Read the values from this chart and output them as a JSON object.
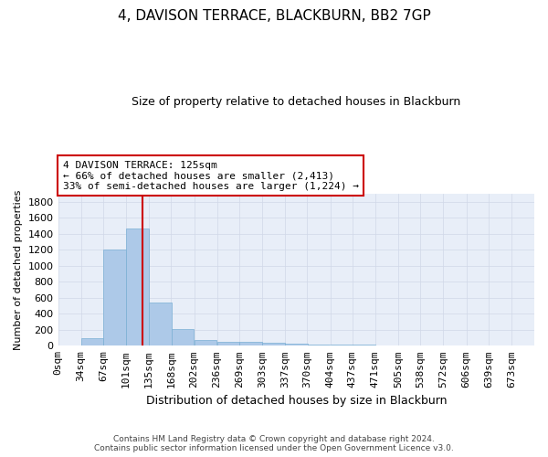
{
  "title1": "4, DAVISON TERRACE, BLACKBURN, BB2 7GP",
  "title2": "Size of property relative to detached houses in Blackburn",
  "xlabel": "Distribution of detached houses by size in Blackburn",
  "ylabel": "Number of detached properties",
  "bin_labels": [
    "0sqm",
    "34sqm",
    "67sqm",
    "101sqm",
    "135sqm",
    "168sqm",
    "202sqm",
    "236sqm",
    "269sqm",
    "303sqm",
    "337sqm",
    "370sqm",
    "404sqm",
    "437sqm",
    "471sqm",
    "505sqm",
    "538sqm",
    "572sqm",
    "606sqm",
    "639sqm",
    "673sqm"
  ],
  "bar_heights": [
    0,
    90,
    1200,
    1470,
    540,
    205,
    75,
    50,
    45,
    35,
    25,
    20,
    15,
    15,
    0,
    0,
    0,
    0,
    0,
    0,
    0
  ],
  "bar_color": "#adc9e8",
  "bar_edgecolor": "#7aafd4",
  "property_line_x": 125,
  "bin_edges": [
    0,
    34,
    67,
    101,
    135,
    168,
    202,
    236,
    269,
    303,
    337,
    370,
    404,
    437,
    471,
    505,
    538,
    572,
    606,
    639,
    673
  ],
  "bin_width": 34,
  "annotation_title": "4 DAVISON TERRACE: 125sqm",
  "annotation_line1": "← 66% of detached houses are smaller (2,413)",
  "annotation_line2": "33% of semi-detached houses are larger (1,224) →",
  "annotation_box_color": "#ffffff",
  "annotation_box_edgecolor": "#cc0000",
  "vline_color": "#cc0000",
  "grid_color": "#d0d8e8",
  "background_color": "#e8eef8",
  "footer_line1": "Contains HM Land Registry data © Crown copyright and database right 2024.",
  "footer_line2": "Contains public sector information licensed under the Open Government Licence v3.0.",
  "ylim": [
    0,
    1900
  ],
  "yticks": [
    0,
    200,
    400,
    600,
    800,
    1000,
    1200,
    1400,
    1600,
    1800
  ]
}
